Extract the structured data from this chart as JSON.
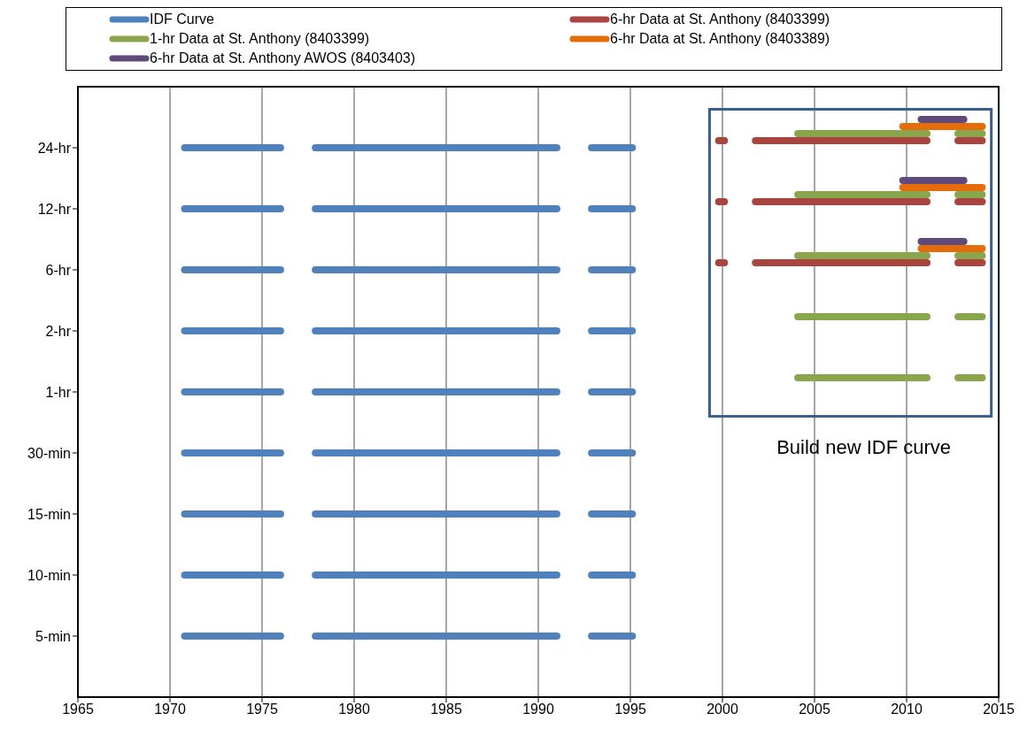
{
  "chart_data": {
    "type": "bar",
    "orientation": "horizontal",
    "xlim": [
      1965,
      2015
    ],
    "xticks": [
      1965,
      1970,
      1975,
      1980,
      1985,
      1990,
      1995,
      2000,
      2005,
      2010,
      2015
    ],
    "categories": [
      "24-hr",
      "12-hr",
      "6-hr",
      "2-hr",
      "1-hr",
      "30-min",
      "15-min",
      "10-min",
      "5-min"
    ],
    "grid": "x",
    "legend": "top",
    "annotations": [
      "Build new IDF curve"
    ],
    "series": [
      {
        "name": "IDF Curve",
        "color": "#4f81bd",
        "base": [
          1970.6,
          1970.6,
          1970.6,
          1970.6,
          1970.6,
          1970.6,
          1970.6,
          1970.6,
          1970.6
        ],
        "values": [
          5.6,
          5.6,
          5.6,
          5.6,
          5.6,
          5.6,
          5.6,
          5.6,
          5.6
        ]
      },
      {
        "color": "#4f81bd",
        "base": [
          1977.7,
          1977.7,
          1977.7,
          1977.7,
          1977.7,
          1977.7,
          1977.7,
          1977.7,
          1977.7
        ],
        "values": [
          13.5,
          13.5,
          13.5,
          13.5,
          13.5,
          13.5,
          13.5,
          13.5,
          13.5
        ]
      },
      {
        "color": "#4f81bd",
        "base": [
          1992.7,
          1992.7,
          1992.7,
          1992.7,
          1992.7,
          1992.7,
          1992.7,
          1992.7,
          1992.7
        ],
        "values": [
          2.6,
          2.6,
          2.6,
          2.6,
          2.6,
          2.6,
          2.6,
          2.6,
          2.6
        ]
      },
      {
        "name": "6-hr Data at St. Anthony (8403399)",
        "color": "#a9443f",
        "base": [
          1999.6,
          1999.6,
          1999.6,
          null,
          null,
          null,
          null,
          null,
          null
        ],
        "values": [
          0.7,
          0.7,
          0.7,
          null,
          null,
          null,
          null,
          null,
          null
        ]
      },
      {
        "color": "#a9443f",
        "base": [
          2001.6,
          2001.6,
          2001.6,
          null,
          null,
          null,
          null,
          null,
          null
        ],
        "values": [
          9.7,
          9.7,
          9.7,
          null,
          null,
          null,
          null,
          null,
          null
        ]
      },
      {
        "color": "#a9443f",
        "base": [
          2012.6,
          2012.6,
          2012.6,
          null,
          null,
          null,
          null,
          null,
          null
        ],
        "values": [
          1.7,
          1.7,
          1.7,
          null,
          null,
          null,
          null,
          null,
          null
        ]
      },
      {
        "name": "1-hr Data at St. Anthony (8403399)",
        "color": "#8aa64d",
        "base": [
          2003.9,
          2003.9,
          2003.9,
          2003.9,
          2003.9,
          null,
          null,
          null,
          null
        ],
        "values": [
          7.4,
          7.4,
          7.4,
          7.4,
          7.4,
          null,
          null,
          null,
          null
        ]
      },
      {
        "color": "#8aa64d",
        "base": [
          2012.6,
          2012.6,
          2012.6,
          2012.6,
          2012.6,
          null,
          null,
          null,
          null
        ],
        "values": [
          1.7,
          1.7,
          1.7,
          1.7,
          1.7,
          null,
          null,
          null,
          null
        ]
      },
      {
        "name": "6-hr Data at St. Anthony (8403389)",
        "color": "#e46c0a",
        "base": [
          2009.6,
          2009.6,
          2010.6,
          null,
          null,
          null,
          null,
          null,
          null
        ],
        "values": [
          4.7,
          4.7,
          3.7,
          null,
          null,
          null,
          null,
          null,
          null
        ]
      },
      {
        "name": "6-hr Data at St. Anthony AWOS (8403403)",
        "color": "#604a7b",
        "base": [
          2010.6,
          2009.6,
          2010.6,
          null,
          null,
          null,
          null,
          null,
          null
        ],
        "values": [
          2.7,
          3.7,
          2.7,
          null,
          null,
          null,
          null,
          null,
          null
        ]
      }
    ]
  }
}
